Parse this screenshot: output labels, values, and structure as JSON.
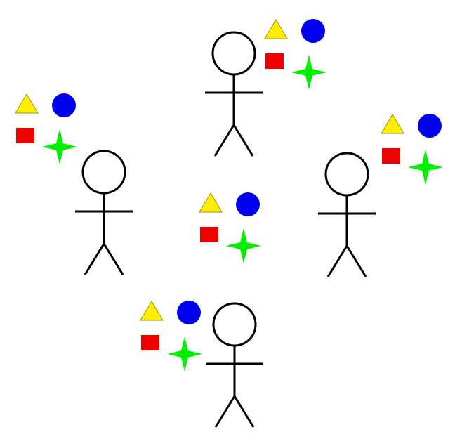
{
  "colors": {
    "background": "#ffffff",
    "stroke": "#000000",
    "triangle": "#ffee00",
    "circle": "#0000ee",
    "square": "#ee0000",
    "star": "#00ee00"
  },
  "figures": [
    {
      "id": "top",
      "shapes": [
        "triangle",
        "circle",
        "square",
        "star"
      ]
    },
    {
      "id": "left",
      "shapes": [
        "triangle",
        "circle",
        "square",
        "star"
      ]
    },
    {
      "id": "right",
      "shapes": [
        "triangle",
        "circle",
        "square",
        "star"
      ]
    },
    {
      "id": "bottom",
      "shapes": [
        "triangle",
        "circle",
        "square",
        "star"
      ]
    }
  ],
  "center_group": {
    "shapes": [
      "triangle",
      "circle",
      "square",
      "star"
    ]
  }
}
